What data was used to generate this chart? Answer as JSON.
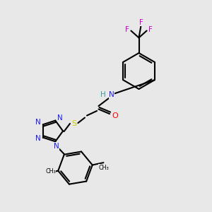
{
  "bg_color": "#e8e8e8",
  "colors": {
    "C": "#000000",
    "N": "#1a1aff",
    "O": "#ff0000",
    "S": "#cccc00",
    "F": "#cc00cc",
    "H": "#3aa0a0"
  },
  "lw": 1.5,
  "ring_r": 0.72,
  "tet_r": 0.48
}
